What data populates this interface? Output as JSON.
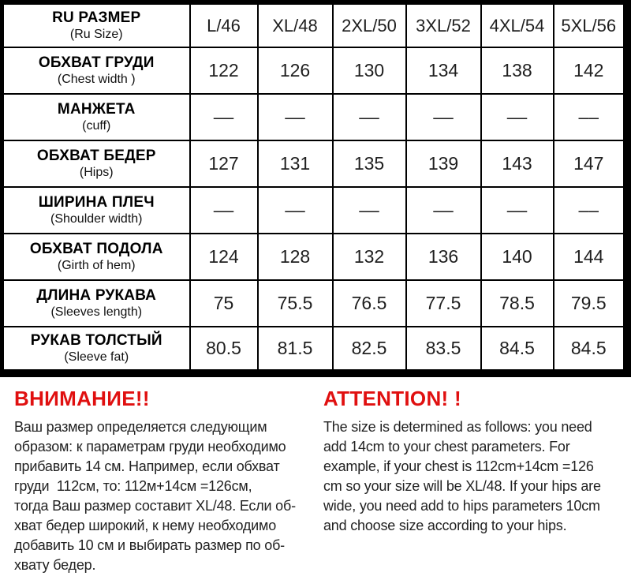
{
  "table": {
    "header": {
      "label_ru": "RU РАЗМЕР",
      "label_en": "(Ru Size)",
      "sizes": [
        "L/46",
        "XL/48",
        "2XL/50",
        "3XL/52",
        "4XL/54",
        "5XL/56"
      ]
    },
    "rows": [
      {
        "label_ru": "ОБХВАТ ГРУДИ",
        "label_en": "(Chest width )",
        "values": [
          "122",
          "126",
          "130",
          "134",
          "138",
          "142"
        ]
      },
      {
        "label_ru": "МАНЖЕТА",
        "label_en": "(cuff)",
        "values": [
          "––",
          "––",
          "––",
          "––",
          "––",
          "––"
        ]
      },
      {
        "label_ru": "ОБХВАТ БЕДЕР",
        "label_en": "(Hips)",
        "values": [
          "127",
          "131",
          "135",
          "139",
          "143",
          "147"
        ]
      },
      {
        "label_ru": "ШИРИНА ПЛЕЧ",
        "label_en": "(Shoulder width)",
        "values": [
          "––",
          "––",
          "––",
          "––",
          "––",
          "––"
        ]
      },
      {
        "label_ru": "ОБХВАТ ПОДОЛА",
        "label_en": "(Girth of hem)",
        "values": [
          "124",
          "128",
          "132",
          "136",
          "140",
          "144"
        ]
      },
      {
        "label_ru": "ДЛИНА РУКАВА",
        "label_en": "(Sleeves length)",
        "values": [
          "75",
          "75.5",
          "76.5",
          "77.5",
          "78.5",
          "79.5"
        ]
      },
      {
        "label_ru": "РУКАВ ТОЛСТЫЙ",
        "label_en": "(Sleeve fat)",
        "values": [
          "80.5",
          "81.5",
          "82.5",
          "83.5",
          "84.5",
          "84.5"
        ]
      }
    ]
  },
  "notices": {
    "ru": {
      "title": "ВНИМАНИЕ!!",
      "body": "Ваш размер определяется следующим\nобразом: к параметрам груди необходимо\nприбавить 14 см. Например, если обхват\nгруди  112см, то: 112м+14см =126см,\nтогда Ваш размер составит XL/48. Если об-\nхват бедер широкий, к нему необходимо\nдобавить 10 см и выбирать размер по об-\nхвату бедер."
    },
    "en": {
      "title": "ATTENTION! !",
      "body": "The size is determined as follows: you need\nadd 14cm to your chest parameters. For\nexample, if your chest is 112cm+14cm =126\ncm so your size will be XL/48. If your hips are\nwide, you need add to hips parameters 10cm\nand choose size according to your hips."
    }
  },
  "colors": {
    "accent_red": "#e01010",
    "border_black": "#000000"
  }
}
